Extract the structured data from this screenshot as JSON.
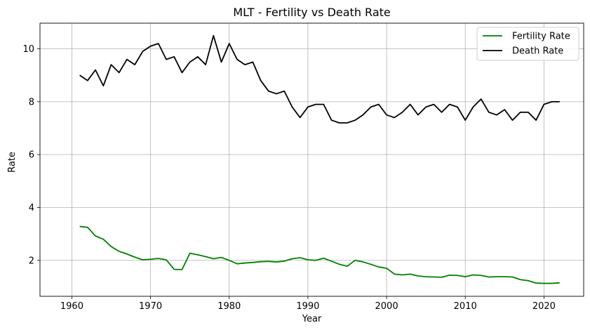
{
  "chart_data": {
    "type": "line",
    "title": "MLT - Fertility vs Death Rate",
    "xlabel": "Year",
    "ylabel": "Rate",
    "xlim": [
      1955.95,
      2025.05
    ],
    "ylim": [
      0.64,
      10.97
    ],
    "x_ticks": [
      1960,
      1970,
      1980,
      1990,
      2000,
      2010,
      2020
    ],
    "y_ticks": [
      2,
      4,
      6,
      8,
      10
    ],
    "grid": true,
    "legend_position": "top-right",
    "x": [
      1961,
      1962,
      1963,
      1964,
      1965,
      1966,
      1967,
      1968,
      1969,
      1970,
      1971,
      1972,
      1973,
      1974,
      1975,
      1976,
      1977,
      1978,
      1979,
      1980,
      1981,
      1982,
      1983,
      1984,
      1985,
      1986,
      1987,
      1988,
      1989,
      1990,
      1991,
      1992,
      1993,
      1994,
      1995,
      1996,
      1997,
      1998,
      1999,
      2000,
      2001,
      2002,
      2003,
      2004,
      2005,
      2006,
      2007,
      2008,
      2009,
      2010,
      2011,
      2012,
      2013,
      2014,
      2015,
      2016,
      2017,
      2018,
      2019,
      2020,
      2021,
      2022
    ],
    "series": [
      {
        "name": "Fertility Rate",
        "color": "#008000",
        "values": [
          3.28,
          3.25,
          2.92,
          2.8,
          2.52,
          2.34,
          2.24,
          2.12,
          2.02,
          2.04,
          2.07,
          2.02,
          1.66,
          1.65,
          2.27,
          2.21,
          2.14,
          2.06,
          2.11,
          2.0,
          1.87,
          1.9,
          1.92,
          1.95,
          1.96,
          1.94,
          1.97,
          2.06,
          2.1,
          2.02,
          2.0,
          2.08,
          1.97,
          1.85,
          1.78,
          2.0,
          1.94,
          1.85,
          1.75,
          1.7,
          1.48,
          1.45,
          1.48,
          1.41,
          1.38,
          1.37,
          1.36,
          1.44,
          1.43,
          1.38,
          1.45,
          1.43,
          1.37,
          1.38,
          1.38,
          1.37,
          1.27,
          1.23,
          1.14,
          1.13,
          1.13,
          1.15
        ]
      },
      {
        "name": "Death Rate",
        "color": "#000000",
        "values": [
          9.0,
          8.8,
          9.2,
          8.6,
          9.4,
          9.1,
          9.6,
          9.4,
          9.9,
          10.1,
          10.2,
          9.6,
          9.7,
          9.1,
          9.5,
          9.7,
          9.4,
          10.5,
          9.5,
          10.2,
          9.6,
          9.4,
          9.5,
          8.8,
          8.4,
          8.3,
          8.4,
          7.8,
          7.4,
          7.8,
          7.9,
          7.9,
          7.3,
          7.2,
          7.2,
          7.3,
          7.5,
          7.8,
          7.9,
          7.5,
          7.4,
          7.6,
          7.9,
          7.5,
          7.8,
          7.9,
          7.6,
          7.9,
          7.8,
          7.3,
          7.8,
          8.1,
          7.6,
          7.5,
          7.7,
          7.3,
          7.6,
          7.6,
          7.3,
          7.9,
          8.0,
          8.0
        ]
      }
    ]
  }
}
